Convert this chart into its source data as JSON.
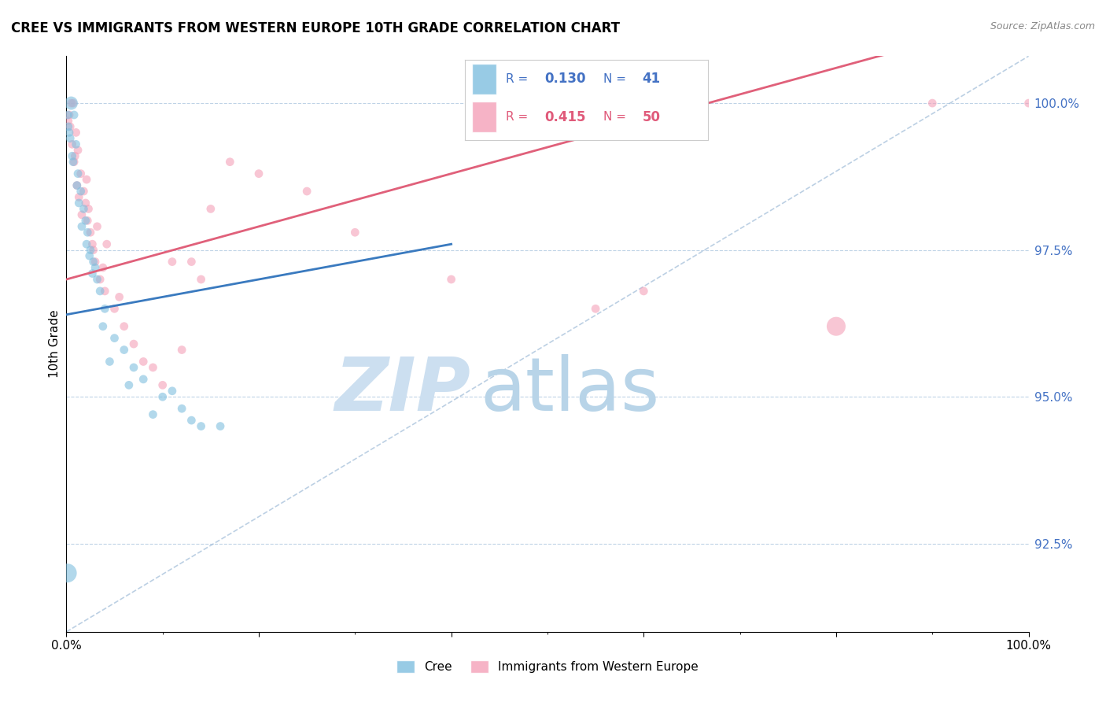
{
  "title": "CREE VS IMMIGRANTS FROM WESTERN EUROPE 10TH GRADE CORRELATION CHART",
  "source": "Source: ZipAtlas.com",
  "ylabel": "10th Grade",
  "y_tick_labels": [
    "92.5%",
    "95.0%",
    "97.5%",
    "100.0%"
  ],
  "y_tick_values": [
    92.5,
    95.0,
    97.5,
    100.0
  ],
  "x_min": 0.0,
  "x_max": 100.0,
  "y_min": 91.0,
  "y_max": 100.8,
  "legend_blue_label": "Cree",
  "legend_pink_label": "Immigrants from Western Europe",
  "R_blue": 0.13,
  "N_blue": 41,
  "R_pink": 0.415,
  "N_pink": 50,
  "blue_color": "#7fbfdf",
  "pink_color": "#f4a0b8",
  "blue_line_color": "#3a7abf",
  "pink_line_color": "#e0607a",
  "diag_line_color": "#a0bcd8",
  "watermark_ZIP_color": "#ccdff0",
  "watermark_atlas_color": "#b8d4e8",
  "blue_scatter_x": [
    0.3,
    0.5,
    0.8,
    1.0,
    1.2,
    1.5,
    1.8,
    2.0,
    2.2,
    2.5,
    2.8,
    3.0,
    3.5,
    4.0,
    5.0,
    6.0,
    7.0,
    8.0,
    10.0,
    12.0,
    14.0,
    0.2,
    0.4,
    0.6,
    1.1,
    1.6,
    2.1,
    2.4,
    3.2,
    4.5,
    9.0,
    11.0,
    13.0,
    0.15,
    0.7,
    1.3,
    2.7,
    3.8,
    6.5,
    16.0,
    0.1
  ],
  "blue_scatter_y": [
    99.5,
    100.0,
    99.8,
    99.3,
    98.8,
    98.5,
    98.2,
    98.0,
    97.8,
    97.5,
    97.3,
    97.2,
    96.8,
    96.5,
    96.0,
    95.8,
    95.5,
    95.3,
    95.0,
    94.8,
    94.5,
    99.6,
    99.4,
    99.1,
    98.6,
    97.9,
    97.6,
    97.4,
    97.0,
    95.6,
    94.7,
    95.1,
    94.6,
    99.8,
    99.0,
    98.3,
    97.1,
    96.2,
    95.2,
    94.5,
    92.0
  ],
  "blue_scatter_sizes": [
    60,
    150,
    60,
    60,
    60,
    60,
    60,
    60,
    60,
    60,
    60,
    60,
    60,
    60,
    60,
    60,
    60,
    60,
    60,
    60,
    60,
    60,
    60,
    60,
    60,
    60,
    60,
    60,
    60,
    60,
    60,
    60,
    60,
    60,
    60,
    60,
    60,
    60,
    60,
    60,
    300
  ],
  "pink_scatter_x": [
    0.3,
    0.5,
    0.7,
    1.0,
    1.2,
    1.5,
    1.8,
    2.0,
    2.2,
    2.5,
    2.8,
    3.0,
    3.5,
    4.0,
    5.0,
    6.0,
    7.0,
    8.0,
    10.0,
    12.0,
    15.0,
    0.4,
    0.6,
    0.8,
    1.1,
    1.3,
    1.6,
    2.1,
    2.3,
    3.2,
    4.2,
    9.0,
    11.0,
    14.0,
    17.0,
    20.0,
    25.0,
    40.0,
    55.0,
    90.0,
    100.0,
    0.2,
    0.9,
    2.7,
    3.8,
    5.5,
    13.0,
    30.0,
    60.0,
    80.0
  ],
  "pink_scatter_y": [
    99.8,
    100.0,
    100.0,
    99.5,
    99.2,
    98.8,
    98.5,
    98.3,
    98.0,
    97.8,
    97.5,
    97.3,
    97.0,
    96.8,
    96.5,
    96.2,
    95.9,
    95.6,
    95.2,
    95.8,
    98.2,
    99.6,
    99.3,
    99.0,
    98.6,
    98.4,
    98.1,
    98.7,
    98.2,
    97.9,
    97.6,
    95.5,
    97.3,
    97.0,
    99.0,
    98.8,
    98.5,
    97.0,
    96.5,
    100.0,
    100.0,
    99.7,
    99.1,
    97.6,
    97.2,
    96.7,
    97.3,
    97.8,
    96.8,
    96.2
  ],
  "pink_scatter_sizes": [
    60,
    60,
    60,
    60,
    60,
    60,
    60,
    60,
    60,
    60,
    60,
    60,
    60,
    60,
    60,
    60,
    60,
    60,
    60,
    60,
    60,
    60,
    60,
    60,
    60,
    60,
    60,
    60,
    60,
    60,
    60,
    60,
    60,
    60,
    60,
    60,
    60,
    60,
    60,
    60,
    60,
    60,
    60,
    60,
    60,
    60,
    60,
    60,
    60,
    300
  ]
}
